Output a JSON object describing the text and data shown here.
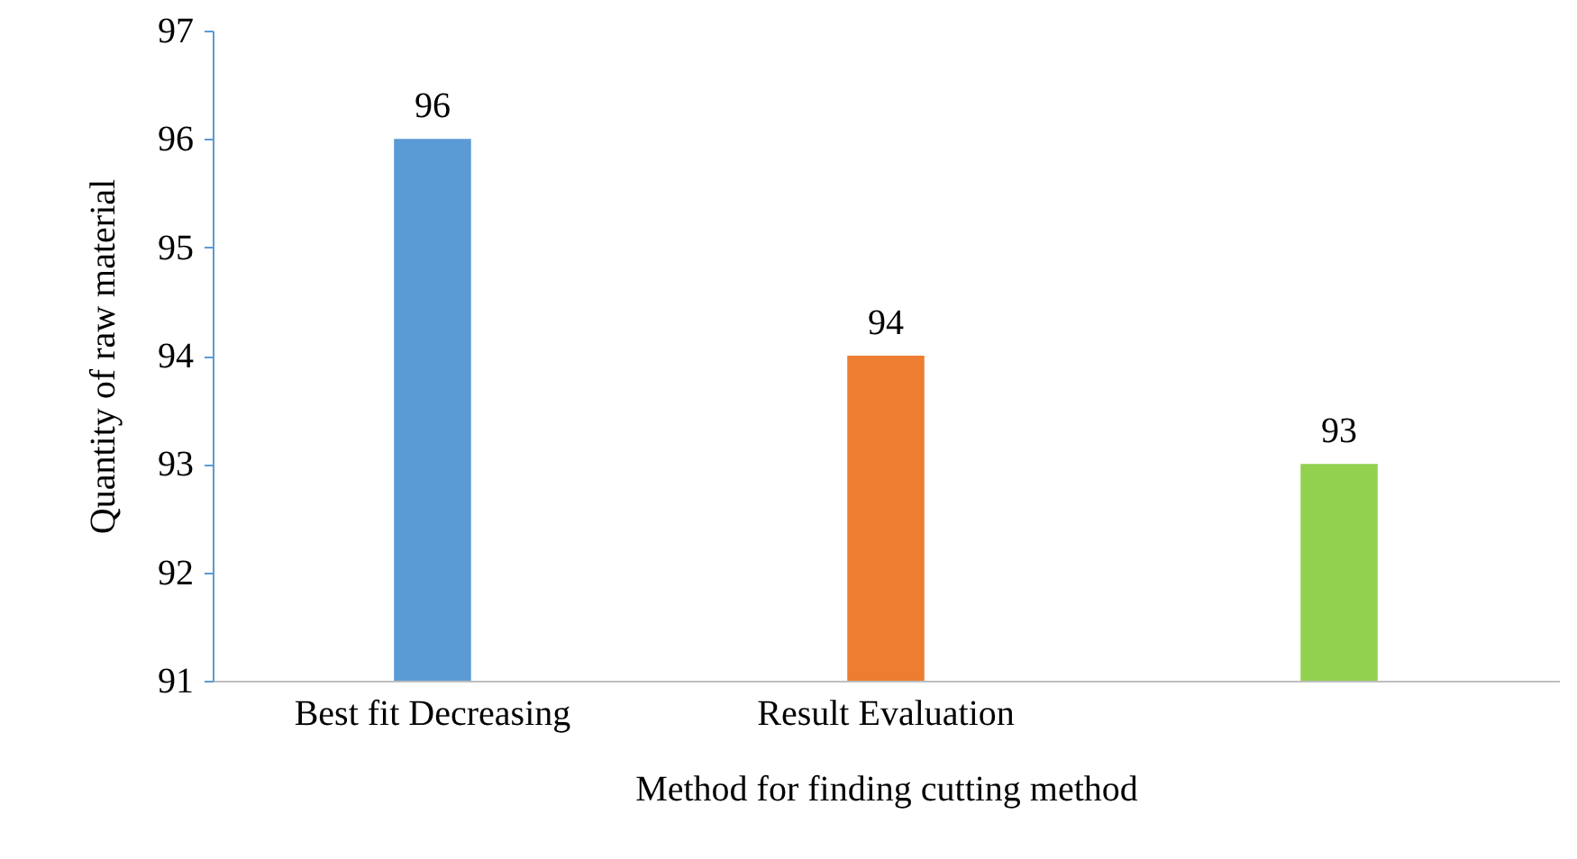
{
  "chart_data": {
    "type": "bar",
    "xlabel": "Method for finding cutting method",
    "ylabel": "Quantity of raw material",
    "categories": [
      "Best fit Decreasing",
      "Result Evaluation",
      null
    ],
    "values": [
      96,
      94,
      93
    ],
    "colors": [
      "#5b9bd5",
      "#ed7d31",
      "#92d050"
    ],
    "ylim": [
      91,
      97
    ],
    "yticks": [
      91,
      92,
      93,
      94,
      95,
      96,
      97
    ],
    "grid": false,
    "data_labels": true
  }
}
